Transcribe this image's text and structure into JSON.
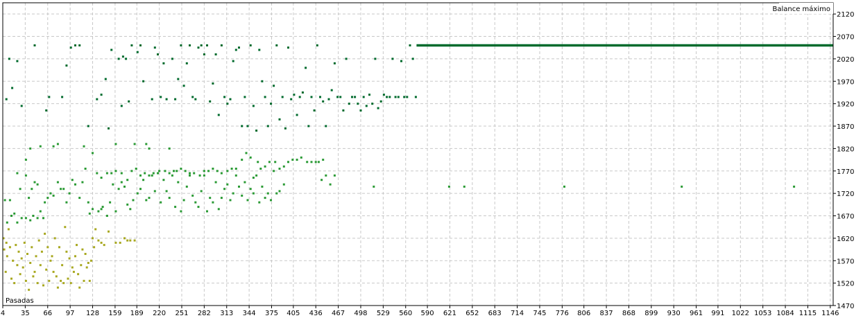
{
  "chart_data": {
    "type": "scatter",
    "title": "",
    "top_right_label": "Balance máximo",
    "x_axis_label": "Pasadas",
    "xlim": [
      4,
      1150
    ],
    "ylim": [
      1470,
      2145
    ],
    "x_ticks": [
      4,
      35,
      66,
      97,
      128,
      159,
      189,
      220,
      251,
      282,
      313,
      344,
      375,
      405,
      436,
      467,
      498,
      529,
      560,
      590,
      621,
      652,
      683,
      714,
      745,
      776,
      806,
      837,
      868,
      899,
      930,
      961,
      991,
      1022,
      1053,
      1084,
      1115,
      1146
    ],
    "y_ticks": [
      1470,
      1520,
      1570,
      1620,
      1670,
      1720,
      1770,
      1820,
      1870,
      1920,
      1970,
      2020,
      2070,
      2120
    ],
    "grid": true,
    "plateau": {
      "x_start": 575,
      "x_end": 1150,
      "y": 2050
    },
    "colors": {
      "high": "#006a2c",
      "mid": "#2a9a34",
      "low": "#a8a820",
      "grid": "#c8c8c8"
    },
    "points": [
      [
        5,
        1620
      ],
      [
        6,
        1595
      ],
      [
        7,
        1705
      ],
      [
        8,
        1545
      ],
      [
        9,
        1610
      ],
      [
        10,
        1580
      ],
      [
        12,
        1640
      ],
      [
        14,
        1600
      ],
      [
        16,
        1530
      ],
      [
        18,
        1570
      ],
      [
        20,
        1520
      ],
      [
        22,
        1605
      ],
      [
        24,
        1560
      ],
      [
        26,
        1590
      ],
      [
        28,
        1540
      ],
      [
        30,
        1575
      ],
      [
        32,
        1555
      ],
      [
        34,
        1610
      ],
      [
        36,
        1525
      ],
      [
        38,
        1585
      ],
      [
        40,
        1505
      ],
      [
        42,
        1565
      ],
      [
        44,
        1600
      ],
      [
        46,
        1535
      ],
      [
        48,
        1545
      ],
      [
        50,
        1580
      ],
      [
        52,
        1520
      ],
      [
        54,
        1615
      ],
      [
        56,
        1560
      ],
      [
        58,
        1590
      ],
      [
        60,
        1515
      ],
      [
        62,
        1630
      ],
      [
        64,
        1550
      ],
      [
        66,
        1600
      ],
      [
        68,
        1525
      ],
      [
        70,
        1570
      ],
      [
        72,
        1580
      ],
      [
        74,
        1545
      ],
      [
        76,
        1620
      ],
      [
        78,
        1535
      ],
      [
        80,
        1510
      ],
      [
        82,
        1600
      ],
      [
        84,
        1525
      ],
      [
        86,
        1560
      ],
      [
        88,
        1520
      ],
      [
        90,
        1645
      ],
      [
        92,
        1590
      ],
      [
        94,
        1530
      ],
      [
        96,
        1575
      ],
      [
        98,
        1520
      ],
      [
        100,
        1555
      ],
      [
        102,
        1545
      ],
      [
        104,
        1580
      ],
      [
        106,
        1605
      ],
      [
        108,
        1540
      ],
      [
        110,
        1510
      ],
      [
        112,
        1560
      ],
      [
        114,
        1595
      ],
      [
        116,
        1525
      ],
      [
        118,
        1585
      ],
      [
        120,
        1555
      ],
      [
        122,
        1565
      ],
      [
        124,
        1525
      ],
      [
        126,
        1570
      ],
      [
        128,
        1620
      ],
      [
        130,
        1600
      ],
      [
        132,
        1640
      ],
      [
        136,
        1615
      ],
      [
        140,
        1610
      ],
      [
        144,
        1605
      ],
      [
        150,
        1635
      ],
      [
        160,
        1610
      ],
      [
        166,
        1610
      ],
      [
        172,
        1620
      ],
      [
        176,
        1615
      ],
      [
        180,
        1615
      ],
      [
        186,
        1615
      ],
      [
        10,
        1655
      ],
      [
        14,
        1705
      ],
      [
        16,
        1670
      ],
      [
        20,
        1675
      ],
      [
        24,
        1655
      ],
      [
        30,
        1665
      ],
      [
        36,
        1665
      ],
      [
        42,
        1660
      ],
      [
        46,
        1670
      ],
      [
        52,
        1665
      ],
      [
        56,
        1680
      ],
      [
        60,
        1665
      ],
      [
        62,
        1700
      ],
      [
        66,
        1710
      ],
      [
        70,
        1720
      ],
      [
        74,
        1715
      ],
      [
        80,
        1745
      ],
      [
        84,
        1730
      ],
      [
        88,
        1730
      ],
      [
        92,
        1700
      ],
      [
        96,
        1720
      ],
      [
        100,
        1750
      ],
      [
        104,
        1740
      ],
      [
        110,
        1710
      ],
      [
        114,
        1745
      ],
      [
        118,
        1775
      ],
      [
        122,
        1700
      ],
      [
        124,
        1675
      ],
      [
        128,
        1685
      ],
      [
        136,
        1680
      ],
      [
        140,
        1685
      ],
      [
        142,
        1690
      ],
      [
        148,
        1670
      ],
      [
        152,
        1700
      ],
      [
        156,
        1740
      ],
      [
        160,
        1680
      ],
      [
        164,
        1730
      ],
      [
        168,
        1745
      ],
      [
        172,
        1735
      ],
      [
        176,
        1695
      ],
      [
        180,
        1685
      ],
      [
        184,
        1705
      ],
      [
        190,
        1720
      ],
      [
        194,
        1730
      ],
      [
        198,
        1750
      ],
      [
        202,
        1705
      ],
      [
        206,
        1710
      ],
      [
        210,
        1760
      ],
      [
        214,
        1725
      ],
      [
        218,
        1765
      ],
      [
        222,
        1700
      ],
      [
        226,
        1750
      ],
      [
        230,
        1725
      ],
      [
        234,
        1710
      ],
      [
        238,
        1760
      ],
      [
        242,
        1690
      ],
      [
        246,
        1745
      ],
      [
        250,
        1680
      ],
      [
        254,
        1705
      ],
      [
        258,
        1735
      ],
      [
        262,
        1760
      ],
      [
        266,
        1715
      ],
      [
        270,
        1700
      ],
      [
        274,
        1690
      ],
      [
        278,
        1725
      ],
      [
        282,
        1760
      ],
      [
        286,
        1680
      ],
      [
        290,
        1710
      ],
      [
        294,
        1700
      ],
      [
        298,
        1745
      ],
      [
        302,
        1685
      ],
      [
        306,
        1710
      ],
      [
        310,
        1730
      ],
      [
        314,
        1740
      ],
      [
        318,
        1705
      ],
      [
        322,
        1720
      ],
      [
        326,
        1760
      ],
      [
        330,
        1735
      ],
      [
        334,
        1715
      ],
      [
        338,
        1745
      ],
      [
        342,
        1705
      ],
      [
        346,
        1730
      ],
      [
        350,
        1720
      ],
      [
        354,
        1760
      ],
      [
        358,
        1700
      ],
      [
        362,
        1735
      ],
      [
        366,
        1710
      ],
      [
        370,
        1720
      ],
      [
        374,
        1705
      ],
      [
        378,
        1770
      ],
      [
        382,
        1720
      ],
      [
        386,
        1725
      ],
      [
        392,
        1740
      ],
      [
        516,
        1735
      ],
      [
        620,
        1735
      ],
      [
        641,
        1735
      ],
      [
        779,
        1735
      ],
      [
        941,
        1735
      ],
      [
        1096,
        1735
      ],
      [
        450,
        1760
      ],
      [
        456,
        1740
      ],
      [
        462,
        1760
      ],
      [
        444,
        1750
      ],
      [
        398,
        1790
      ],
      [
        404,
        1795
      ],
      [
        410,
        1795
      ],
      [
        416,
        1800
      ],
      [
        424,
        1790
      ],
      [
        430,
        1790
      ],
      [
        436,
        1790
      ],
      [
        440,
        1790
      ],
      [
        446,
        1795
      ],
      [
        392,
        1780
      ],
      [
        386,
        1775
      ],
      [
        380,
        1790
      ],
      [
        372,
        1790
      ],
      [
        366,
        1780
      ],
      [
        360,
        1775
      ],
      [
        356,
        1790
      ],
      [
        350,
        1755
      ],
      [
        346,
        1800
      ],
      [
        340,
        1810
      ],
      [
        334,
        1795
      ],
      [
        326,
        1775
      ],
      [
        320,
        1775
      ],
      [
        314,
        1770
      ],
      [
        306,
        1765
      ],
      [
        300,
        1770
      ],
      [
        294,
        1775
      ],
      [
        288,
        1770
      ],
      [
        282,
        1770
      ],
      [
        276,
        1760
      ],
      [
        268,
        1765
      ],
      [
        262,
        1765
      ],
      [
        256,
        1770
      ],
      [
        250,
        1775
      ],
      [
        244,
        1770
      ],
      [
        240,
        1770
      ],
      [
        234,
        1765
      ],
      [
        228,
        1770
      ],
      [
        220,
        1770
      ],
      [
        212,
        1765
      ],
      [
        206,
        1760
      ],
      [
        200,
        1765
      ],
      [
        194,
        1760
      ],
      [
        188,
        1775
      ],
      [
        182,
        1770
      ],
      [
        176,
        1750
      ],
      [
        168,
        1765
      ],
      [
        160,
        1770
      ],
      [
        154,
        1765
      ],
      [
        148,
        1765
      ],
      [
        140,
        1755
      ],
      [
        134,
        1765
      ],
      [
        24,
        1765
      ],
      [
        28,
        1730
      ],
      [
        36,
        1760
      ],
      [
        40,
        1710
      ],
      [
        44,
        1730
      ],
      [
        48,
        1745
      ],
      [
        52,
        1740
      ],
      [
        9,
        1930
      ],
      [
        13,
        2020
      ],
      [
        17,
        1955
      ],
      [
        24,
        2015
      ],
      [
        30,
        1915
      ],
      [
        36,
        1795
      ],
      [
        42,
        1820
      ],
      [
        48,
        2050
      ],
      [
        56,
        1825
      ],
      [
        64,
        1905
      ],
      [
        68,
        1935
      ],
      [
        74,
        1825
      ],
      [
        80,
        1830
      ],
      [
        86,
        1935
      ],
      [
        92,
        2005
      ],
      [
        98,
        2045
      ],
      [
        104,
        2050
      ],
      [
        110,
        2050
      ],
      [
        116,
        1825
      ],
      [
        122,
        1870
      ],
      [
        128,
        1810
      ],
      [
        134,
        1930
      ],
      [
        140,
        1940
      ],
      [
        146,
        1975
      ],
      [
        150,
        1865
      ],
      [
        154,
        2040
      ],
      [
        160,
        1830
      ],
      [
        164,
        2020
      ],
      [
        168,
        1915
      ],
      [
        170,
        2025
      ],
      [
        174,
        2020
      ],
      [
        178,
        1925
      ],
      [
        182,
        2050
      ],
      [
        186,
        1830
      ],
      [
        190,
        2035
      ],
      [
        194,
        2050
      ],
      [
        198,
        1970
      ],
      [
        202,
        1830
      ],
      [
        206,
        1820
      ],
      [
        210,
        1930
      ],
      [
        214,
        2045
      ],
      [
        218,
        2030
      ],
      [
        222,
        1935
      ],
      [
        226,
        2010
      ],
      [
        230,
        1930
      ],
      [
        234,
        1820
      ],
      [
        238,
        2020
      ],
      [
        242,
        1930
      ],
      [
        246,
        1975
      ],
      [
        250,
        2050
      ],
      [
        254,
        1960
      ],
      [
        258,
        2010
      ],
      [
        262,
        2050
      ],
      [
        266,
        1935
      ],
      [
        270,
        1930
      ],
      [
        274,
        2045
      ],
      [
        278,
        2050
      ],
      [
        282,
        2030
      ],
      [
        286,
        2050
      ],
      [
        290,
        1925
      ],
      [
        294,
        1965
      ],
      [
        298,
        2030
      ],
      [
        302,
        1895
      ],
      [
        306,
        2050
      ],
      [
        310,
        1935
      ],
      [
        314,
        1920
      ],
      [
        318,
        1930
      ],
      [
        322,
        2015
      ],
      [
        326,
        2040
      ],
      [
        330,
        2045
      ],
      [
        334,
        1870
      ],
      [
        338,
        1935
      ],
      [
        342,
        1870
      ],
      [
        346,
        2050
      ],
      [
        350,
        1915
      ],
      [
        354,
        1860
      ],
      [
        358,
        2040
      ],
      [
        362,
        1970
      ],
      [
        366,
        1935
      ],
      [
        370,
        1870
      ],
      [
        374,
        1920
      ],
      [
        378,
        1960
      ],
      [
        382,
        2050
      ],
      [
        386,
        1885
      ],
      [
        390,
        1935
      ],
      [
        394,
        1865
      ],
      [
        398,
        2045
      ],
      [
        402,
        1930
      ],
      [
        406,
        1940
      ],
      [
        410,
        1895
      ],
      [
        414,
        1935
      ],
      [
        418,
        1945
      ],
      [
        422,
        2000
      ],
      [
        426,
        1870
      ],
      [
        430,
        1935
      ],
      [
        434,
        1905
      ],
      [
        438,
        2050
      ],
      [
        442,
        1935
      ],
      [
        446,
        1925
      ],
      [
        450,
        1870
      ],
      [
        454,
        1930
      ],
      [
        458,
        1950
      ],
      [
        462,
        2010
      ],
      [
        466,
        1935
      ],
      [
        470,
        1935
      ],
      [
        474,
        1905
      ],
      [
        478,
        2020
      ],
      [
        482,
        1920
      ],
      [
        486,
        1935
      ],
      [
        490,
        1935
      ],
      [
        494,
        1920
      ],
      [
        498,
        1905
      ],
      [
        502,
        1935
      ],
      [
        506,
        1915
      ],
      [
        510,
        1940
      ],
      [
        514,
        1920
      ],
      [
        518,
        2020
      ],
      [
        522,
        1910
      ],
      [
        526,
        1925
      ],
      [
        530,
        1940
      ],
      [
        534,
        1935
      ],
      [
        538,
        1935
      ],
      [
        542,
        2020
      ],
      [
        546,
        1935
      ],
      [
        550,
        1935
      ],
      [
        554,
        2015
      ],
      [
        558,
        1935
      ],
      [
        562,
        1935
      ],
      [
        566,
        2050
      ],
      [
        570,
        2020
      ],
      [
        574,
        1935
      ]
    ]
  }
}
